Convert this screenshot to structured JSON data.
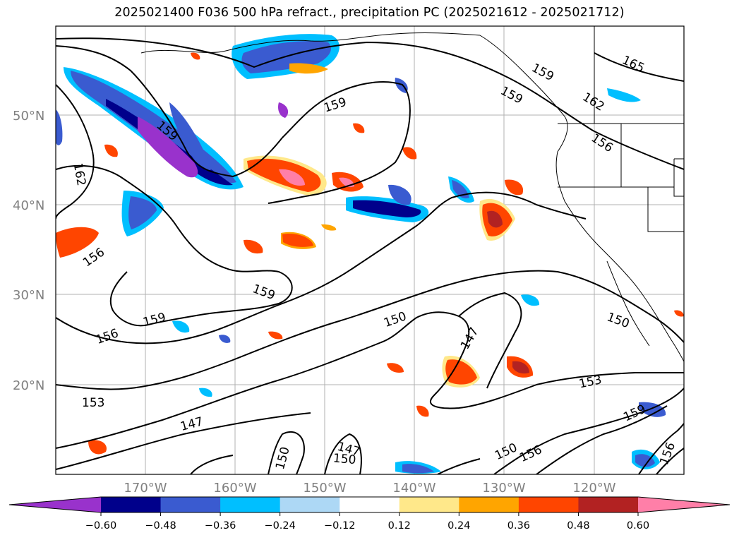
{
  "title": "2025021400 F036 500 hPa refract., precipitation PC (2025021612 - 2025021712)",
  "lat_labels": [
    "50°N",
    "40°N",
    "30°N",
    "20°N"
  ],
  "lon_labels": [
    "170°W",
    "160°W",
    "150°W",
    "140°W",
    "130°W",
    "120°W"
  ],
  "contour_labels": [
    "165",
    "159",
    "162",
    "156",
    "159",
    "159",
    "159",
    "162",
    "156",
    "159",
    "159",
    "156",
    "150",
    "147",
    "150",
    "153",
    "147",
    "150",
    "147",
    "150",
    "150",
    "156",
    "159",
    "156",
    "153"
  ],
  "colorbar": {
    "ticks": [
      "−0.60",
      "−0.48",
      "−0.36",
      "−0.24",
      "−0.12",
      "0.12",
      "0.24",
      "0.36",
      "0.48",
      "0.60"
    ],
    "colors": [
      "#9932cc",
      "#00008b",
      "#3a5bd0",
      "#00bfff",
      "#add8f5",
      "#ffffff",
      "#ffe88a",
      "#ffa500",
      "#ff4500",
      "#b22222",
      "#ff7fa8"
    ]
  },
  "chart_data": {
    "type": "contour-map",
    "title": "2025021400 F036 500 hPa refract., precipitation PC (2025021612 - 2025021712)",
    "fill_levels": [
      -0.6,
      -0.48,
      -0.36,
      -0.24,
      -0.12,
      0.12,
      0.24,
      0.36,
      0.48,
      0.6
    ],
    "contour_levels": [
      147,
      150,
      153,
      156,
      159,
      162,
      165
    ],
    "lon_range": [
      -180,
      -110
    ],
    "lat_range": [
      10,
      60
    ],
    "grid": true,
    "colorbar": "horizontal-bottom"
  }
}
